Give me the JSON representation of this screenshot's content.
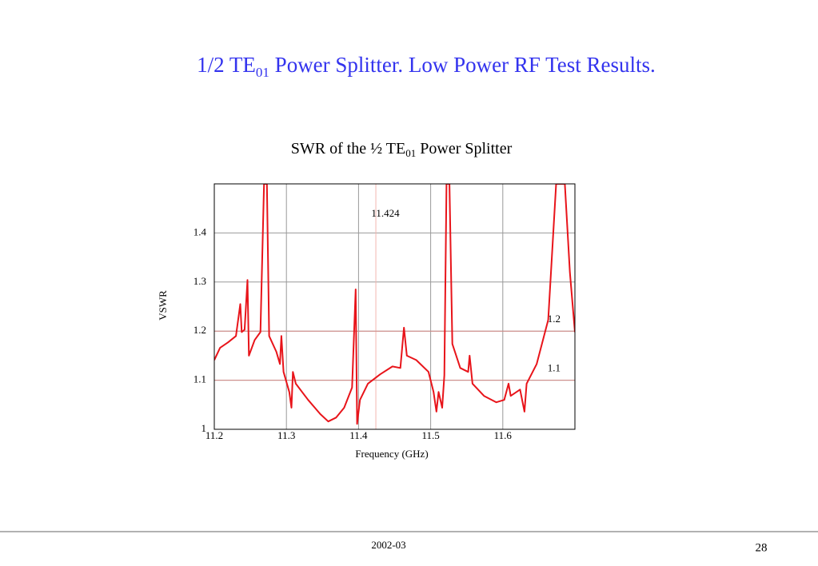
{
  "slide": {
    "title": [
      "1/2 TE",
      "01",
      " Power Splitter.  Low Power RF Test Results."
    ],
    "footer": "2002-03",
    "page_number": "28"
  },
  "chart_data": {
    "type": "line",
    "title": [
      "SWR of the ½ TE",
      "01",
      " Power Splitter"
    ],
    "x_label": "Frequency (GHz)",
    "y_label": "VSWR",
    "xlim": [
      11.2,
      11.7
    ],
    "xticks": [
      11.2,
      11.3,
      11.4,
      11.5,
      11.6
    ],
    "ylim": [
      1,
      1.5
    ],
    "yticks": [
      1,
      1.1,
      1.2,
      1.3,
      1.4
    ],
    "grid": true,
    "annotations": [
      {
        "text": "11.424",
        "x": 11.424
      },
      {
        "text": "1.2",
        "y": 1.2
      },
      {
        "text": "1.1",
        "y": 1.1
      }
    ],
    "x": [
      11.2,
      11.208,
      11.219,
      11.23,
      11.236,
      11.238,
      11.242,
      11.246,
      11.248,
      11.256,
      11.264,
      11.269,
      11.273,
      11.276,
      11.286,
      11.291,
      11.293,
      11.296,
      11.304,
      11.307,
      11.309,
      11.313,
      11.33,
      11.347,
      11.358,
      11.369,
      11.38,
      11.391,
      11.396,
      11.398,
      11.402,
      11.413,
      11.43,
      11.447,
      11.458,
      11.463,
      11.467,
      11.48,
      11.497,
      11.504,
      11.508,
      11.511,
      11.516,
      11.519,
      11.522,
      11.526,
      11.53,
      11.541,
      11.552,
      11.554,
      11.558,
      11.574,
      11.591,
      11.602,
      11.608,
      11.611,
      11.624,
      11.63,
      11.633,
      11.647,
      11.663,
      11.674,
      11.686,
      11.693,
      11.7
    ],
    "series": [
      {
        "name": "VSWR",
        "color": "#e8141a",
        "values": [
          1.141,
          1.166,
          1.177,
          1.19,
          1.255,
          1.198,
          1.203,
          1.304,
          1.15,
          1.182,
          1.198,
          1.5,
          1.5,
          1.19,
          1.158,
          1.133,
          1.19,
          1.117,
          1.076,
          1.044,
          1.117,
          1.093,
          1.06,
          1.031,
          1.016,
          1.024,
          1.044,
          1.085,
          1.285,
          1.011,
          1.06,
          1.093,
          1.112,
          1.128,
          1.125,
          1.207,
          1.15,
          1.141,
          1.117,
          1.076,
          1.036,
          1.076,
          1.044,
          1.11,
          1.5,
          1.5,
          1.174,
          1.125,
          1.117,
          1.15,
          1.093,
          1.068,
          1.055,
          1.06,
          1.093,
          1.068,
          1.081,
          1.036,
          1.093,
          1.133,
          1.223,
          1.5,
          1.5,
          1.32,
          1.198
        ]
      }
    ]
  }
}
